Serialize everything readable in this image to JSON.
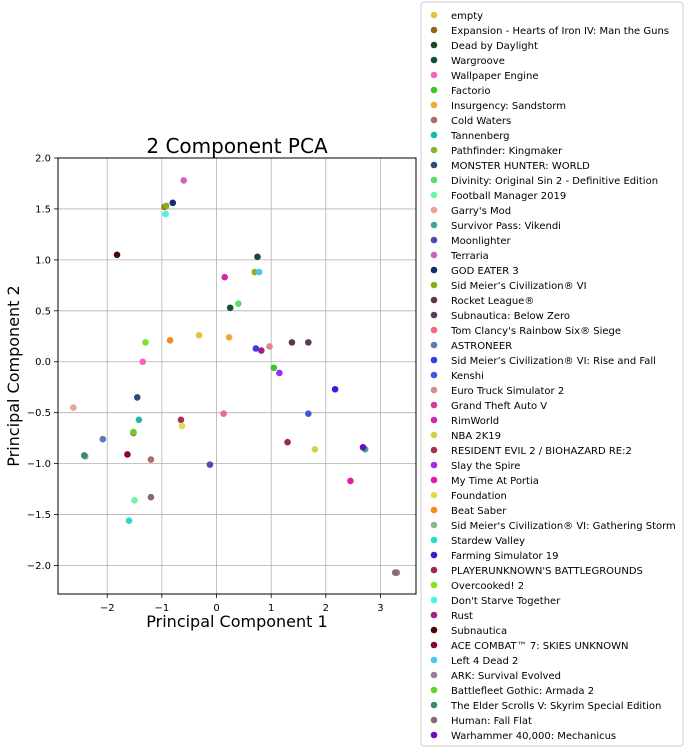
{
  "chart_data": {
    "type": "scatter",
    "title": "2 Component PCA",
    "xlabel": "Principal Component 1",
    "ylabel": "Principal Component 2",
    "xlim": [
      -2.9,
      3.65
    ],
    "ylim": [
      -2.28,
      2.0
    ],
    "xticks": [
      -2,
      -1,
      0,
      1,
      2,
      3
    ],
    "xtick_labels": [
      "−2",
      "−1",
      "0",
      "1",
      "2",
      "3"
    ],
    "yticks": [
      -2.0,
      -1.5,
      -1.0,
      -0.5,
      0.0,
      0.5,
      1.0,
      1.5,
      2.0
    ],
    "ytick_labels": [
      "−2.0",
      "−1.5",
      "−1.0",
      "−0.5",
      "0.0",
      "0.5",
      "1.0",
      "1.5",
      "2.0"
    ],
    "grid": true,
    "legend_position": "right, outside plot",
    "series": [
      {
        "name": "empty",
        "color": "#e3c33b",
        "points": [
          [
            -0.32,
            0.26
          ]
        ]
      },
      {
        "name": "Expansion - Hearts of Iron IV: Man the Guns",
        "color": "#8b6b1a",
        "points": [
          [
            -0.95,
            1.52
          ]
        ]
      },
      {
        "name": "Dead by Daylight",
        "color": "#1a4a2a",
        "points": [
          [
            0.75,
            1.03
          ]
        ]
      },
      {
        "name": "Wargroove",
        "color": "#0f5535",
        "points": [
          [
            0.25,
            0.53
          ]
        ]
      },
      {
        "name": "Wallpaper Engine",
        "color": "#f464c0",
        "points": [
          [
            -1.35,
            0.0
          ]
        ]
      },
      {
        "name": "Factorio",
        "color": "#3fc42a",
        "points": [
          [
            1.05,
            -0.06
          ]
        ]
      },
      {
        "name": "Insurgency: Sandstorm",
        "color": "#f2a93b",
        "points": [
          [
            0.23,
            0.24
          ]
        ]
      },
      {
        "name": "Cold Waters",
        "color": "#b06a6a",
        "points": [
          [
            -1.2,
            -0.96
          ]
        ]
      },
      {
        "name": "Tannenberg",
        "color": "#1fb8a8",
        "points": [
          [
            -1.42,
            -0.57
          ]
        ]
      },
      {
        "name": "Pathfinder: Kingmaker",
        "color": "#86b52a",
        "points": [
          [
            0.7,
            0.88
          ]
        ]
      },
      {
        "name": "MONSTER HUNTER: WORLD",
        "color": "#2e4a78",
        "points": [
          [
            -1.45,
            -0.35
          ]
        ]
      },
      {
        "name": "Divinity: Original Sin 2 - Definitive Edition",
        "color": "#55e06a",
        "points": [
          [
            0.4,
            0.57
          ]
        ]
      },
      {
        "name": "Football Manager 2019",
        "color": "#6cf5a5",
        "points": [
          [
            -1.5,
            -1.36
          ]
        ]
      },
      {
        "name": "Garry's Mod",
        "color": "#e8a88a",
        "points": [
          [
            -2.62,
            -0.45
          ]
        ]
      },
      {
        "name": "Survivor Pass: Vikendi",
        "color": "#3aaa8e",
        "points": [
          [
            2.72,
            -0.86
          ]
        ]
      },
      {
        "name": "Moonlighter",
        "color": "#4a4ab8",
        "points": [
          [
            -0.12,
            -1.01
          ]
        ]
      },
      {
        "name": "Terraria",
        "color": "#d262c2",
        "points": [
          [
            -0.6,
            1.78
          ]
        ]
      },
      {
        "name": "GOD EATER 3",
        "color": "#0d2f7a",
        "points": [
          [
            -0.8,
            1.56
          ]
        ]
      },
      {
        "name": "Sid Meier’s Civilization® VI",
        "color": "#85b01a",
        "points": [
          [
            -0.92,
            1.53
          ]
        ]
      },
      {
        "name": "Rocket League®",
        "color": "#5a3a4a",
        "points": [
          [
            1.38,
            0.19
          ]
        ]
      },
      {
        "name": "Subnautica: Below Zero",
        "color": "#5a3a5a",
        "points": [
          [
            1.68,
            0.19
          ]
        ]
      },
      {
        "name": "Tom Clancy's Rainbow Six® Siege",
        "color": "#f06a82",
        "points": [
          [
            0.13,
            -0.51
          ]
        ]
      },
      {
        "name": "ASTRONEER",
        "color": "#5a7ab8",
        "points": [
          [
            -2.08,
            -0.76
          ]
        ]
      },
      {
        "name": "Sid Meier’s Civilization® VI: Rise and Fall",
        "color": "#3a3ae6",
        "points": [
          [
            0.72,
            0.13
          ]
        ]
      },
      {
        "name": "Kenshi",
        "color": "#3a5ad8",
        "points": [
          [
            1.68,
            -0.51
          ]
        ]
      },
      {
        "name": "Euro Truck Simulator 2",
        "color": "#dc8888",
        "points": [
          [
            0.97,
            0.15
          ]
        ]
      },
      {
        "name": "Grand Theft Auto V",
        "color": "#d83aa0",
        "points": [
          [
            -1.52,
            -0.7
          ]
        ]
      },
      {
        "name": "RimWorld",
        "color": "#d02aa8",
        "points": [
          [
            0.15,
            0.83
          ]
        ]
      },
      {
        "name": "NBA 2K19",
        "color": "#d2d24a",
        "points": [
          [
            1.8,
            -0.86
          ]
        ]
      },
      {
        "name": "RESIDENT EVIL 2 / BIOHAZARD RE:2",
        "color": "#a53055",
        "points": [
          [
            -0.65,
            -0.57
          ]
        ]
      },
      {
        "name": "Slay the Spire",
        "color": "#a02af0",
        "points": [
          [
            1.15,
            -0.11
          ]
        ]
      },
      {
        "name": "My Time At Portia",
        "color": "#e61aa0",
        "points": [
          [
            2.45,
            -1.17
          ]
        ]
      },
      {
        "name": "Foundation",
        "color": "#dede50",
        "points": [
          [
            -0.63,
            -0.63
          ]
        ]
      },
      {
        "name": "Beat Saber",
        "color": "#f58a1a",
        "points": [
          [
            -0.85,
            0.21
          ]
        ]
      },
      {
        "name": "Sid Meier's Civilization® VI: Gathering Storm",
        "color": "#8ab88a",
        "points": [
          [
            -2.4,
            -0.93
          ]
        ]
      },
      {
        "name": "Stardew Valley",
        "color": "#2adcc8",
        "points": [
          [
            -1.6,
            -1.56
          ]
        ]
      },
      {
        "name": "Farming Simulator 19",
        "color": "#3a1ae0",
        "points": [
          [
            2.17,
            -0.27
          ]
        ]
      },
      {
        "name": "PLAYERUNKNOWN'S BATTLEGROUNDS",
        "color": "#a02a4a",
        "points": [
          [
            1.3,
            -0.79
          ]
        ]
      },
      {
        "name": "Overcooked! 2",
        "color": "#7ae62a",
        "points": [
          [
            -1.3,
            0.19
          ]
        ]
      },
      {
        "name": "Don't Starve Together",
        "color": "#4af5e6",
        "points": [
          [
            -0.93,
            1.45
          ]
        ]
      },
      {
        "name": "Rust",
        "color": "#a0208a",
        "points": [
          [
            0.82,
            0.11
          ]
        ]
      },
      {
        "name": "Subnautica",
        "color": "#4a0808",
        "points": [
          [
            -1.82,
            1.05
          ]
        ]
      },
      {
        "name": "ACE COMBAT™ 7: SKIES UNKNOWN",
        "color": "#8a0a28",
        "points": [
          [
            -1.63,
            -0.91
          ]
        ]
      },
      {
        "name": "Left 4 Dead 2",
        "color": "#4ac8e6",
        "points": [
          [
            0.78,
            0.88
          ]
        ]
      },
      {
        "name": "ARK: Survival Evolved",
        "color": "#a07a9a",
        "points": [
          [
            3.3,
            -2.07
          ]
        ]
      },
      {
        "name": "Battlefleet Gothic: Armada 2",
        "color": "#5ad81a",
        "points": [
          [
            -1.52,
            -0.69
          ]
        ]
      },
      {
        "name": "The Elder Scrolls V: Skyrim Special Edition",
        "color": "#3a8a6a",
        "points": [
          [
            -2.42,
            -0.92
          ]
        ]
      },
      {
        "name": "Human: Fall Flat",
        "color": "#8a6a6a",
        "points": [
          [
            -1.2,
            -1.33
          ],
          [
            3.27,
            -2.07
          ]
        ]
      },
      {
        "name": "Warhammer 40,000: Mechanicus",
        "color": "#6a0ac8",
        "points": [
          [
            2.68,
            -0.84
          ]
        ]
      }
    ]
  }
}
